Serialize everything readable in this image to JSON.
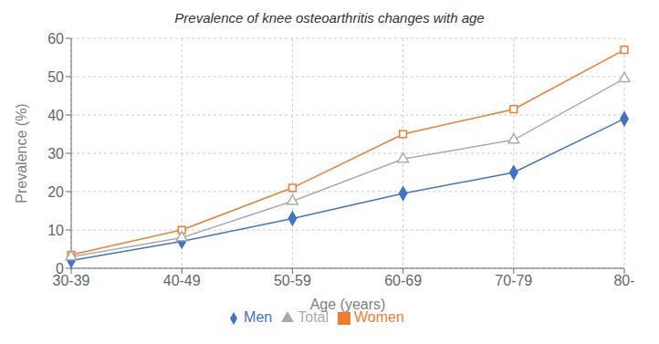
{
  "chart_data": {
    "type": "line",
    "title": "Prevalence of knee osteoarthritis changes with age",
    "xlabel": "Age (years)",
    "ylabel": "Prevalence (%)",
    "categories": [
      "30-39",
      "40-49",
      "50-59",
      "60-69",
      "70-79",
      "80-"
    ],
    "series": [
      {
        "name": "Men",
        "color": "#4472C4",
        "marker": "diamond",
        "values": [
          2,
          7,
          13,
          19.5,
          25,
          39
        ]
      },
      {
        "name": "Women",
        "color": "#ED7D31",
        "marker": "square",
        "values": [
          3.5,
          10,
          21,
          35,
          41.5,
          57
        ]
      },
      {
        "name": "Total",
        "color": "#ABABAB",
        "marker": "triangle",
        "values": [
          3,
          8,
          17.5,
          28.5,
          33.5,
          49.5
        ]
      }
    ],
    "ylim": [
      0,
      60
    ],
    "yticks": [
      0,
      10,
      20,
      30,
      40,
      50,
      60
    ],
    "grid": true,
    "legend": "bottom"
  }
}
